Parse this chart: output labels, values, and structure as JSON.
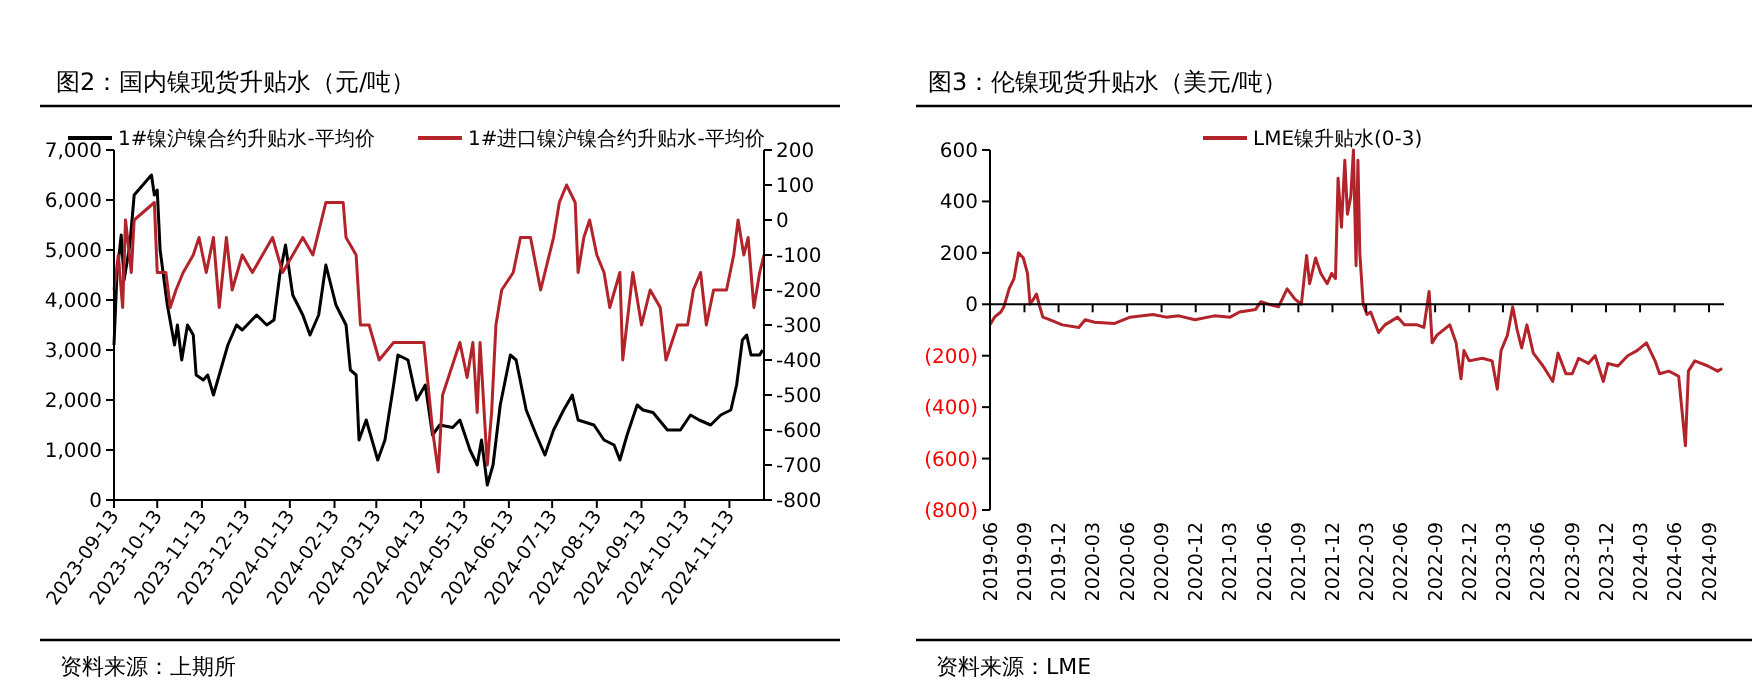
{
  "chart_data": [
    {
      "type": "line",
      "title": "图2：国内镍现货升贴水（元/吨）",
      "annotations": [
        "资料来源：上期所"
      ],
      "legend": "top",
      "grid": false,
      "xlim": [
        "2023-09-13",
        "2024-12-07"
      ],
      "xticks": [
        "2023-09-13",
        "2023-10-13",
        "2023-11-13",
        "2023-12-13",
        "2024-01-13",
        "2024-02-13",
        "2024-03-13",
        "2024-04-13",
        "2024-05-13",
        "2024-06-13",
        "2024-07-13",
        "2024-08-13",
        "2024-09-13",
        "2024-10-13",
        "2024-11-13"
      ],
      "ylim": [
        0,
        7000
      ],
      "yticks": [
        {
          "value": 0,
          "label": "0"
        },
        {
          "value": 1000,
          "label": "1,000"
        },
        {
          "value": 2000,
          "label": "2,000"
        },
        {
          "value": 3000,
          "label": "3,000"
        },
        {
          "value": 4000,
          "label": "4,000"
        },
        {
          "value": 5000,
          "label": "5,000"
        },
        {
          "value": 6000,
          "label": "6,000"
        },
        {
          "value": 7000,
          "label": "7,000"
        }
      ],
      "y2lim": [
        -800,
        200
      ],
      "y2ticks": [
        -800,
        -700,
        -600,
        -500,
        -400,
        -300,
        -200,
        -100,
        0,
        100,
        200
      ],
      "series": [
        {
          "name": "1#镍沪镍合约升贴水-平均价",
          "color": "#000000",
          "x": [
            "2023-09-13",
            "2023-09-15",
            "2023-09-18",
            "2023-09-20",
            "2023-09-24",
            "2023-09-27",
            "2023-10-09",
            "2023-10-11",
            "2023-10-13",
            "2023-10-15",
            "2023-10-20",
            "2023-10-25",
            "2023-10-27",
            "2023-10-30",
            "2023-11-03",
            "2023-11-07",
            "2023-11-09",
            "2023-11-14",
            "2023-11-17",
            "2023-11-21",
            "2023-11-25",
            "2023-12-01",
            "2023-12-07",
            "2023-12-11",
            "2023-12-21",
            "2023-12-28",
            "2024-01-02",
            "2024-01-06",
            "2024-01-10",
            "2024-01-15",
            "2024-01-22",
            "2024-01-27",
            "2024-02-02",
            "2024-02-07",
            "2024-02-14",
            "2024-02-21",
            "2024-02-24",
            "2024-02-28",
            "2024-03-01",
            "2024-03-06",
            "2024-03-11",
            "2024-03-14",
            "2024-03-19",
            "2024-03-25",
            "2024-03-28",
            "2024-04-04",
            "2024-04-10",
            "2024-04-16",
            "2024-04-21",
            "2024-04-26",
            "2024-05-05",
            "2024-05-10",
            "2024-05-17",
            "2024-05-22",
            "2024-05-25",
            "2024-05-29",
            "2024-06-02",
            "2024-06-07",
            "2024-06-14",
            "2024-06-18",
            "2024-06-25",
            "2024-07-02",
            "2024-07-08",
            "2024-07-14",
            "2024-07-21",
            "2024-07-27",
            "2024-07-31",
            "2024-08-11",
            "2024-08-18",
            "2024-08-25",
            "2024-08-29",
            "2024-09-03",
            "2024-09-10",
            "2024-09-14",
            "2024-09-21",
            "2024-10-01",
            "2024-10-10",
            "2024-10-17",
            "2024-10-23",
            "2024-10-31",
            "2024-11-07",
            "2024-11-14",
            "2024-11-18",
            "2024-11-22",
            "2024-11-25",
            "2024-11-28",
            "2024-12-04",
            "2024-12-06"
          ],
          "values": [
            3100,
            4500,
            5300,
            4400,
            5100,
            6100,
            6500,
            6100,
            6200,
            5000,
            3900,
            3100,
            3500,
            2800,
            3500,
            3300,
            2500,
            2400,
            2500,
            2100,
            2500,
            3100,
            3500,
            3400,
            3700,
            3500,
            3600,
            4500,
            5100,
            4100,
            3700,
            3300,
            3700,
            4700,
            3900,
            3500,
            2600,
            2500,
            1200,
            1600,
            1100,
            800,
            1200,
            2300,
            2900,
            2800,
            2000,
            2300,
            1300,
            1500,
            1450,
            1600,
            1000,
            700,
            1200,
            300,
            700,
            1900,
            2900,
            2800,
            1800,
            1300,
            900,
            1400,
            1800,
            2100,
            1600,
            1500,
            1200,
            1100,
            800,
            1300,
            1900,
            1800,
            1750,
            1400,
            1400,
            1700,
            1600,
            1500,
            1700,
            1800,
            2300,
            3200,
            3300,
            2900,
            2900,
            3000
          ]
        },
        {
          "name": "1#进口镍沪镍合约升贴水-平均价",
          "color": "#b2232a",
          "axis": "y2",
          "x": [
            "2023-09-13",
            "2023-09-16",
            "2023-09-19",
            "2023-09-21",
            "2023-09-25",
            "2023-09-27",
            "2023-10-11",
            "2023-10-13",
            "2023-10-19",
            "2023-10-22",
            "2023-10-26",
            "2023-10-31",
            "2023-11-07",
            "2023-11-11",
            "2023-11-16",
            "2023-11-21",
            "2023-11-25",
            "2023-11-30",
            "2023-12-04",
            "2023-12-11",
            "2023-12-18",
            "2023-12-25",
            "2024-01-01",
            "2024-01-08",
            "2024-01-15",
            "2024-01-22",
            "2024-01-29",
            "2024-02-07",
            "2024-02-19",
            "2024-02-21",
            "2024-02-28",
            "2024-03-02",
            "2024-03-08",
            "2024-03-15",
            "2024-03-25",
            "2024-04-15",
            "2024-04-21",
            "2024-04-25",
            "2024-04-28",
            "2024-05-10",
            "2024-05-15",
            "2024-05-19",
            "2024-05-22",
            "2024-05-24",
            "2024-05-29",
            "2024-06-01",
            "2024-06-04",
            "2024-06-08",
            "2024-06-16",
            "2024-06-21",
            "2024-06-28",
            "2024-07-05",
            "2024-07-14",
            "2024-07-18",
            "2024-07-23",
            "2024-07-29",
            "2024-07-31",
            "2024-08-04",
            "2024-08-08",
            "2024-08-13",
            "2024-08-18",
            "2024-08-22",
            "2024-08-29",
            "2024-08-31",
            "2024-09-07",
            "2024-09-13",
            "2024-09-19",
            "2024-09-26",
            "2024-09-30",
            "2024-10-08",
            "2024-10-15",
            "2024-10-19",
            "2024-10-24",
            "2024-10-28",
            "2024-11-02",
            "2024-11-11",
            "2024-11-16",
            "2024-11-19",
            "2024-11-23",
            "2024-11-26",
            "2024-11-30",
            "2024-12-04",
            "2024-12-07"
          ],
          "values": [
            -200,
            -100,
            -250,
            0,
            -150,
            0,
            50,
            -150,
            -150,
            -250,
            -200,
            -150,
            -100,
            -50,
            -150,
            -50,
            -250,
            -50,
            -200,
            -100,
            -150,
            -100,
            -50,
            -150,
            -100,
            -50,
            -100,
            50,
            50,
            -50,
            -100,
            -300,
            -300,
            -400,
            -350,
            -350,
            -600,
            -720,
            -500,
            -350,
            -450,
            -350,
            -550,
            -350,
            -700,
            -550,
            -300,
            -200,
            -150,
            -50,
            -50,
            -200,
            -50,
            50,
            100,
            50,
            -150,
            -50,
            0,
            -100,
            -150,
            -250,
            -150,
            -400,
            -150,
            -300,
            -200,
            -250,
            -400,
            -300,
            -300,
            -200,
            -150,
            -300,
            -200,
            -200,
            -100,
            0,
            -100,
            -50,
            -250,
            -150,
            -100
          ]
        }
      ]
    },
    {
      "type": "line",
      "title": "图3：伦镍现货升贴水（美元/吨）",
      "annotations": [
        "资料来源：LME"
      ],
      "legend": "top",
      "xlim": [
        "2019-06-01",
        "2024-10-11"
      ],
      "xticks": [
        "2019-06",
        "2019-09",
        "2019-12",
        "2020-03",
        "2020-06",
        "2020-09",
        "2020-12",
        "2021-03",
        "2021-06",
        "2021-09",
        "2021-12",
        "2022-03",
        "2022-06",
        "2022-09",
        "2022-12",
        "2023-03",
        "2023-06",
        "2023-09",
        "2023-12",
        "2024-03",
        "2024-06",
        "2024-09"
      ],
      "ylim": [
        -800,
        600
      ],
      "yticks": [
        {
          "value": -800,
          "label": "(800)"
        },
        {
          "value": -600,
          "label": "(600)"
        },
        {
          "value": -400,
          "label": "(400)"
        },
        {
          "value": -200,
          "label": "(200)"
        },
        0,
        200,
        400,
        600
      ],
      "series": [
        {
          "name": "LME镍升贴水(0-3)",
          "color": "#b2232a",
          "x": [
            "2019-06-01",
            "2019-06-13",
            "2019-06-30",
            "2019-07-08",
            "2019-07-22",
            "2019-08-04",
            "2019-08-16",
            "2019-08-29",
            "2019-09-09",
            "2019-09-16",
            "2019-09-25",
            "2019-10-03",
            "2019-10-12",
            "2019-10-20",
            "2019-11-07",
            "2019-12-11",
            "2020-01-24",
            "2020-02-10",
            "2020-03-06",
            "2020-04-27",
            "2020-06-09",
            "2020-08-09",
            "2020-09-13",
            "2020-10-17",
            "2020-11-29",
            "2021-01-20",
            "2021-03-03",
            "2021-03-28",
            "2021-05-10",
            "2021-05-24",
            "2021-06-14",
            "2021-07-10",
            "2021-08-02",
            "2021-08-23",
            "2021-09-09",
            "2021-09-23",
            "2021-10-01",
            "2021-10-17",
            "2021-10-31",
            "2021-11-17",
            "2021-11-29",
            "2021-12-09",
            "2021-12-16",
            "2021-12-25",
            "2022-01-03",
            "2022-01-10",
            "2022-01-19",
            "2022-01-26",
            "2022-02-02",
            "2022-02-07",
            "2022-02-12",
            "2022-02-21",
            "2022-03-03",
            "2022-03-13",
            "2022-04-03",
            "2022-04-20",
            "2022-05-24",
            "2022-06-11",
            "2022-07-15",
            "2022-08-02",
            "2022-08-16",
            "2022-08-24",
            "2022-09-06",
            "2022-10-10",
            "2022-10-27",
            "2022-11-09",
            "2022-11-17",
            "2022-12-01",
            "2023-01-05",
            "2023-01-31",
            "2023-02-14",
            "2023-02-24",
            "2023-03-13",
            "2023-03-27",
            "2023-04-08",
            "2023-04-20",
            "2023-05-04",
            "2023-05-21",
            "2023-06-16",
            "2023-07-12",
            "2023-07-26",
            "2023-08-16",
            "2023-09-02",
            "2023-09-19",
            "2023-10-15",
            "2023-11-02",
            "2023-11-24",
            "2023-12-06",
            "2024-01-02",
            "2024-01-28",
            "2024-02-22",
            "2024-03-18",
            "2024-04-10",
            "2024-04-22",
            "2024-05-17",
            "2024-06-12",
            "2024-06-30",
            "2024-07-08",
            "2024-07-25",
            "2024-08-29",
            "2024-09-24",
            "2024-10-06"
          ],
          "values": [
            -80,
            -50,
            -30,
            -10,
            60,
            100,
            200,
            180,
            120,
            0,
            20,
            40,
            -10,
            -50,
            -60,
            -80,
            -90,
            -60,
            -70,
            -75,
            -50,
            -40,
            -50,
            -45,
            -60,
            -45,
            -50,
            -30,
            -20,
            10,
            0,
            -10,
            60,
            20,
            0,
            190,
            80,
            180,
            120,
            80,
            120,
            100,
            490,
            300,
            560,
            350,
            420,
            600,
            150,
            560,
            200,
            0,
            -40,
            -30,
            -110,
            -80,
            -50,
            -80,
            -80,
            -90,
            50,
            -150,
            -120,
            -80,
            -150,
            -290,
            -180,
            -220,
            -210,
            -220,
            -330,
            -180,
            -120,
            -10,
            -100,
            -170,
            -80,
            -190,
            -240,
            -300,
            -190,
            -270,
            -270,
            -210,
            -230,
            -200,
            -300,
            -230,
            -240,
            -200,
            -180,
            -150,
            -220,
            -270,
            -260,
            -280,
            -550,
            -260,
            -220,
            -240,
            -260,
            -250
          ]
        }
      ]
    }
  ]
}
